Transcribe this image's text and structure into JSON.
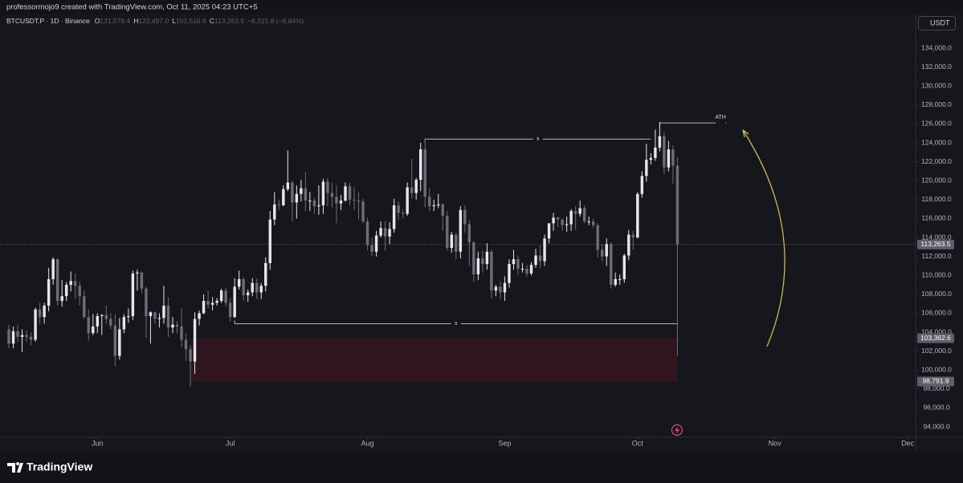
{
  "header": {
    "credit": "professormojo9 created with TradingView.com, Oct 11, 2025 04:23 UTC+5"
  },
  "ui": {
    "currency": "USDT"
  },
  "footer": {
    "brand": "TradingView"
  },
  "chart_data": {
    "type": "candlestick",
    "title": "BTCUSDT.P · 1D · Binance",
    "ohlc_legend": [
      {
        "label": "O",
        "value": "121,579.4"
      },
      {
        "label": "H",
        "value": "122,497.0"
      },
      {
        "label": "L",
        "value": "101,516.6"
      },
      {
        "label": "C",
        "value": "113,263.5"
      }
    ],
    "change": "−8,315.8 (−6.84%)",
    "up_color": "#e6e7ea",
    "down_color": "#6b6e78",
    "x": [
      132,
      133,
      134,
      135,
      136,
      137,
      138,
      139,
      140,
      141,
      142,
      143,
      144,
      145,
      146,
      147,
      148,
      149,
      150,
      151,
      152,
      153,
      154,
      155,
      156,
      157,
      158,
      159,
      160,
      161,
      162,
      163,
      164,
      165,
      166,
      167,
      168,
      169,
      170,
      171,
      172,
      173,
      174,
      175,
      176,
      177,
      178,
      179,
      180,
      181,
      182,
      183,
      184,
      185,
      186,
      187,
      188,
      189,
      190,
      191,
      192,
      193,
      194,
      195,
      196,
      197,
      198,
      199,
      200,
      201,
      202,
      203,
      204,
      205,
      206,
      207,
      208,
      209,
      210,
      211,
      212,
      213,
      214,
      215,
      216,
      217,
      218,
      219,
      220,
      221,
      222,
      223,
      224,
      225,
      226,
      227,
      228,
      229,
      230,
      231,
      232,
      233,
      234,
      235,
      236,
      237,
      238,
      239,
      240,
      241,
      242,
      243,
      244,
      245,
      246,
      247,
      248,
      249,
      250,
      251,
      252,
      253,
      254,
      255,
      256,
      257,
      258,
      259,
      260,
      261,
      262,
      263,
      264,
      265,
      266,
      267,
      268,
      269,
      270,
      271,
      272,
      273,
      274,
      275,
      276,
      277,
      278,
      279,
      280,
      281,
      282,
      283
    ],
    "open": [
      104300,
      102800,
      104100,
      103500,
      103700,
      103500,
      103200,
      106400,
      105600,
      106800,
      109600,
      111700,
      107300,
      107800,
      109000,
      109400,
      108900,
      107800,
      105600,
      103900,
      104600,
      105700,
      105800,
      105400,
      104700,
      101500,
      104300,
      105600,
      105700,
      110200,
      110300,
      108600,
      105700,
      106100,
      105400,
      105500,
      106800,
      104500,
      104800,
      104600,
      103200,
      102200,
      100900,
      105400,
      106000,
      107300,
      106900,
      107100,
      107300,
      108400,
      107100,
      105600,
      108800,
      109600,
      107900,
      108200,
      109200,
      108200,
      108900,
      111300,
      115900,
      117500,
      117400,
      119100,
      119800,
      117700,
      118600,
      119200,
      117900,
      117900,
      117300,
      117400,
      119900,
      118700,
      118300,
      117600,
      117900,
      119400,
      118000,
      117900,
      117800,
      115700,
      113200,
      112500,
      114200,
      115000,
      114100,
      114900,
      117400,
      116600,
      116500,
      119300,
      118700,
      120100,
      123300,
      118300,
      117300,
      117400,
      117500,
      116300,
      112900,
      114300,
      112500,
      116900,
      115400,
      113500,
      110100,
      111800,
      111200,
      112500,
      108400,
      108800,
      108200,
      109200,
      111200,
      111700,
      110700,
      110700,
      110200,
      111100,
      112100,
      111500,
      113900,
      115500,
      116100,
      115900,
      115300,
      115400,
      116800,
      116500,
      117100,
      115700,
      115700,
      115300,
      112700,
      112000,
      113300,
      109000,
      109600,
      109600,
      112100,
      114300,
      114000,
      118600,
      120500,
      122200,
      122400,
      123500,
      124700,
      121400,
      123300,
      121579.4
    ],
    "high": [
      104800,
      104600,
      104800,
      104300,
      104200,
      104000,
      106600,
      107100,
      107100,
      110800,
      111900,
      111800,
      109500,
      109300,
      110400,
      110200,
      109300,
      108400,
      106400,
      105900,
      106000,
      105900,
      106800,
      106000,
      105900,
      105500,
      105900,
      106500,
      110500,
      110600,
      110400,
      108800,
      106200,
      106200,
      106000,
      108900,
      107700,
      105600,
      105200,
      106500,
      103900,
      102600,
      106100,
      106300,
      108000,
      108400,
      107700,
      107600,
      108600,
      108700,
      107600,
      109700,
      110500,
      109800,
      108500,
      109700,
      109700,
      109200,
      111900,
      116800,
      118800,
      118000,
      119500,
      123200,
      120000,
      119500,
      120100,
      120900,
      118800,
      118200,
      119500,
      120200,
      120300,
      119800,
      119500,
      118500,
      119800,
      119800,
      119300,
      118800,
      118100,
      116100,
      114000,
      114700,
      115700,
      115700,
      115600,
      118100,
      117800,
      117000,
      119800,
      122300,
      120300,
      124000,
      124500,
      119200,
      118000,
      118600,
      117600,
      116800,
      114600,
      114500,
      117300,
      117400,
      115800,
      113600,
      112500,
      112600,
      113400,
      112700,
      109000,
      109400,
      109900,
      111700,
      112700,
      112100,
      111300,
      111100,
      111400,
      112800,
      113200,
      114300,
      115500,
      116600,
      116200,
      116000,
      116200,
      117000,
      117300,
      117900,
      117400,
      116200,
      116000,
      115500,
      113300,
      113900,
      113500,
      110300,
      110100,
      112300,
      114800,
      114700,
      118800,
      121000,
      123900,
      122900,
      125400,
      126200,
      125100,
      124200,
      123700,
      122497
    ],
    "low": [
      102300,
      102300,
      103000,
      101900,
      103000,
      102600,
      103000,
      104800,
      104900,
      106200,
      109000,
      106800,
      106700,
      107300,
      108300,
      107500,
      106800,
      105400,
      103100,
      103700,
      103900,
      103700,
      104900,
      104300,
      100400,
      101100,
      103900,
      105000,
      105300,
      108400,
      108100,
      103400,
      102800,
      104900,
      104500,
      104900,
      103500,
      103900,
      103900,
      102400,
      101000,
      98200,
      99600,
      104700,
      105900,
      106500,
      106300,
      106800,
      107100,
      106700,
      105100,
      105500,
      108500,
      107300,
      107200,
      107800,
      107500,
      107500,
      108300,
      110600,
      115300,
      116900,
      117300,
      118900,
      115700,
      116000,
      117800,
      116800,
      116800,
      116500,
      116400,
      116500,
      117300,
      117200,
      115500,
      116900,
      117800,
      117400,
      116900,
      115900,
      115500,
      112700,
      112000,
      112000,
      114000,
      112600,
      113300,
      114500,
      115900,
      116000,
      116300,
      118100,
      118000,
      118900,
      117200,
      116800,
      116800,
      117100,
      114700,
      112600,
      112400,
      111700,
      111800,
      114500,
      111000,
      109300,
      109500,
      110300,
      110600,
      107600,
      107800,
      107500,
      107300,
      108700,
      110600,
      110000,
      110300,
      109900,
      110000,
      110800,
      110800,
      111000,
      113400,
      114700,
      115100,
      114700,
      114600,
      114700,
      114800,
      116200,
      115500,
      115300,
      115000,
      111900,
      111500,
      111000,
      108600,
      108800,
      109000,
      109200,
      111600,
      112700,
      113900,
      118200,
      119900,
      121700,
      122100,
      123100,
      120700,
      121000,
      119700,
      101516.6
    ],
    "close": [
      102800,
      104100,
      103500,
      103700,
      103500,
      103200,
      106400,
      105600,
      106800,
      109600,
      111700,
      107300,
      107800,
      109000,
      109400,
      108900,
      107800,
      105600,
      103900,
      104600,
      105700,
      105800,
      105400,
      104700,
      101500,
      104300,
      105600,
      105700,
      110200,
      110300,
      108600,
      105700,
      106100,
      105400,
      105500,
      106800,
      104500,
      104800,
      104600,
      103200,
      102200,
      100900,
      105400,
      106000,
      107300,
      106900,
      107100,
      107300,
      108400,
      107100,
      105600,
      108800,
      109600,
      107900,
      108200,
      109200,
      108200,
      108900,
      111300,
      115900,
      117500,
      117400,
      119100,
      119800,
      117700,
      118600,
      119200,
      117900,
      117900,
      117300,
      117400,
      119900,
      118700,
      118300,
      117600,
      117900,
      119400,
      118000,
      117900,
      117800,
      115700,
      113200,
      112500,
      114200,
      115000,
      114100,
      114900,
      117400,
      116600,
      116500,
      119300,
      118700,
      120100,
      123300,
      118300,
      117300,
      117400,
      117500,
      116300,
      112900,
      114300,
      112500,
      116900,
      115400,
      113500,
      110100,
      111800,
      111200,
      112500,
      108400,
      108800,
      108200,
      109200,
      111200,
      111700,
      110700,
      110700,
      110200,
      111100,
      112100,
      111500,
      113900,
      115500,
      116100,
      115900,
      115300,
      115400,
      116800,
      116500,
      117100,
      115700,
      115700,
      115300,
      112700,
      112000,
      113300,
      109000,
      109600,
      109600,
      112100,
      114300,
      114000,
      118600,
      120500,
      122200,
      122400,
      123500,
      124700,
      121400,
      123300,
      121600,
      113263.5
    ],
    "xlim": [
      130,
      336.8
    ],
    "xticks": [
      {
        "value": 152,
        "label": "Jun"
      },
      {
        "value": 182,
        "label": "Jul"
      },
      {
        "value": 213,
        "label": "Aug"
      },
      {
        "value": 244,
        "label": "Sep"
      },
      {
        "value": 274,
        "label": "Oct"
      },
      {
        "value": 305,
        "label": "Nov"
      },
      {
        "value": 335,
        "label": "Dec"
      }
    ],
    "ylim": [
      92900,
      137560
    ],
    "yticks": [
      {
        "value": 94000,
        "label": "94,000.0"
      },
      {
        "value": 96000,
        "label": "96,000.0"
      },
      {
        "value": 98000,
        "label": "98,000.0"
      },
      {
        "value": 100000,
        "label": "100,000.0"
      },
      {
        "value": 102000,
        "label": "102,000.0"
      },
      {
        "value": 104000,
        "label": "104,000.0"
      },
      {
        "value": 106000,
        "label": "106,000.0"
      },
      {
        "value": 108000,
        "label": "108,000.0"
      },
      {
        "value": 110000,
        "label": "110,000.0"
      },
      {
        "value": 112000,
        "label": "112,000.0"
      },
      {
        "value": 114000,
        "label": "114,000.0"
      },
      {
        "value": 116000,
        "label": "116,000.0"
      },
      {
        "value": 118000,
        "label": "118,000.0"
      },
      {
        "value": 120000,
        "label": "120,000.0"
      },
      {
        "value": 122000,
        "label": "122,000.0"
      },
      {
        "value": 124000,
        "label": "124,000.0"
      },
      {
        "value": 126000,
        "label": "126,000.0"
      },
      {
        "value": 128000,
        "label": "128,000.0"
      },
      {
        "value": 130000,
        "label": "130,000.0"
      },
      {
        "value": 132000,
        "label": "132,000.0"
      },
      {
        "value": 134000,
        "label": "134,000.0"
      }
    ],
    "current_price": 113263.5,
    "zone": {
      "top": 103362.6,
      "bottom": 98791.9,
      "from": 173,
      "to": 283,
      "color": "#3a1520"
    },
    "levels": [
      {
        "label": "x",
        "value": 124400,
        "from": 226,
        "to": 277
      },
      {
        "label": "x",
        "value": 104900,
        "from": 183,
        "to": 283
      },
      {
        "label": "ATH",
        "value": 126100,
        "from": 279,
        "to": 294
      }
    ],
    "price_tags": [
      {
        "value": 113263.5,
        "label": "113,263.5"
      },
      {
        "value": 103362.6,
        "label": "103,362.6"
      },
      {
        "value": 98791.9,
        "label": "98,791.9"
      }
    ]
  }
}
